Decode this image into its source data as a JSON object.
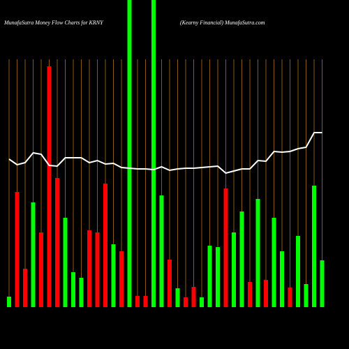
{
  "chart_data": {
    "type": "bar",
    "title": "MunafaSutra  Money Flow  Charts for KRNY",
    "subtitle": "(Kearny Financial) MunafaSutra.com",
    "categories": [
      null,
      null,
      null,
      null,
      null,
      null,
      null,
      null,
      null,
      null,
      null,
      null,
      null,
      null,
      null,
      null,
      null,
      null,
      null,
      null,
      null,
      null,
      null,
      null,
      null,
      null,
      null,
      null,
      null,
      null,
      null,
      null,
      null,
      null,
      null,
      null,
      null,
      null,
      null,
      null
    ],
    "series": [
      {
        "type": "bar",
        "values": [
          15,
          165,
          55,
          150,
          107,
          345,
          185,
          128,
          50,
          42,
          110,
          107,
          177,
          90,
          80,
          440,
          16,
          16,
          440,
          160,
          68,
          27,
          14,
          29,
          14,
          88,
          86,
          170,
          107,
          137,
          36,
          155,
          39,
          128,
          80,
          28,
          102,
          33,
          174,
          67
        ],
        "colors": [
          "lime",
          "red",
          "red",
          "lime",
          "red",
          "red",
          "red",
          "lime",
          "lime",
          "lime",
          "red",
          "red",
          "red",
          "lime",
          "red",
          "lime",
          "red",
          "red",
          "lime",
          "lime",
          "red",
          "lime",
          "red",
          "red",
          "lime",
          "lime",
          "lime",
          "red",
          "lime",
          "lime",
          "red",
          "lime",
          "red",
          "lime",
          "lime",
          "red",
          "lime",
          "lime",
          "lime",
          "lime"
        ]
      },
      {
        "type": "line",
        "color": "#ffffff",
        "values": [
          212,
          204,
          207,
          221,
          219,
          203,
          202,
          214,
          214,
          214,
          207,
          210,
          205,
          206,
          200,
          199,
          198,
          198,
          197,
          201,
          196,
          198,
          199,
          199,
          200,
          201,
          202,
          192,
          195,
          198,
          198,
          210,
          209,
          223,
          222,
          223,
          227,
          229,
          250,
          250
        ]
      }
    ],
    "ylim": [
      0,
      440
    ],
    "grid": true,
    "grid_color": "#8b5a10"
  }
}
